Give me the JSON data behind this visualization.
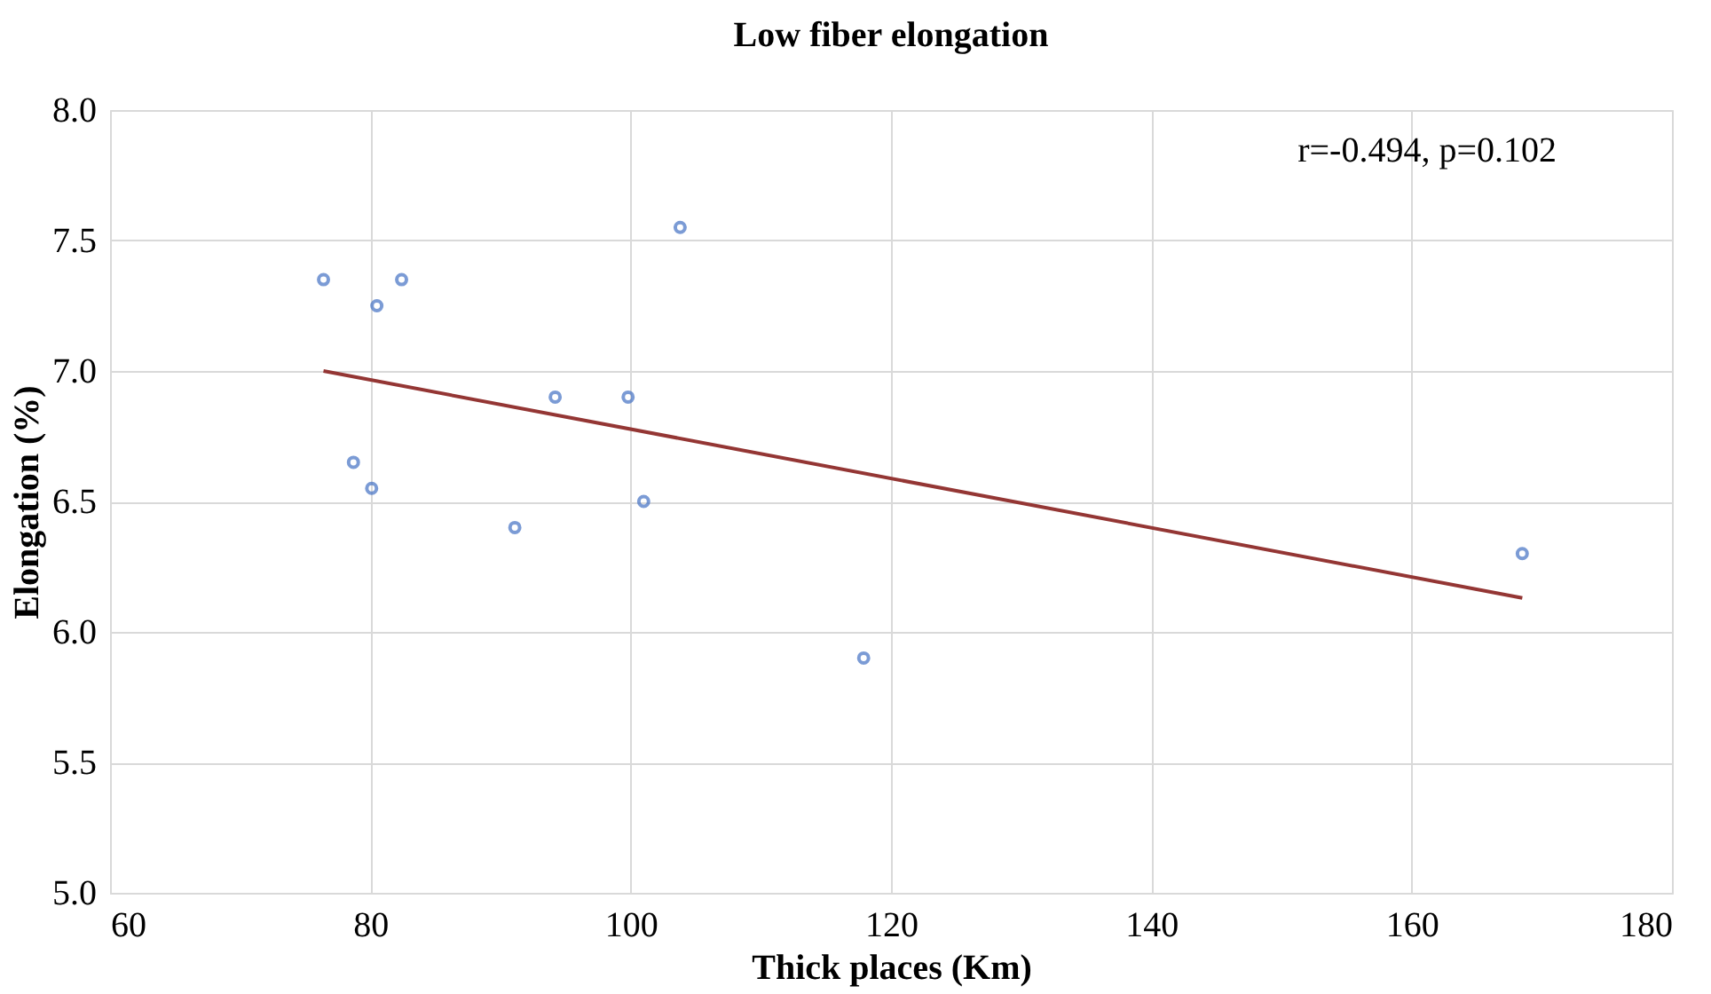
{
  "chart_data": {
    "type": "scatter",
    "title": "Low fiber elongation",
    "xlabel": "Thick places (Km)",
    "ylabel": "Elongation (%)",
    "xlim": [
      60,
      180
    ],
    "xticks": [
      60,
      80,
      100,
      120,
      140,
      160,
      180
    ],
    "ylim": [
      5.0,
      8.0
    ],
    "yticks": [
      {
        "value": 5,
        "label": "5.0"
      },
      {
        "value": 5.5,
        "label": "5.5"
      },
      {
        "value": 6,
        "label": "6.0"
      },
      {
        "value": 6.5,
        "label": "6.5"
      },
      {
        "value": 7,
        "label": "7.0"
      },
      {
        "value": 7.5,
        "label": "7.5"
      },
      {
        "value": 8,
        "label": "8.0"
      }
    ],
    "grid": true,
    "annotations": [
      "r=-0.494, p=0.102"
    ],
    "series": [
      {
        "type": "scatter",
        "marker": "circle",
        "color": "#4472c4",
        "x": [
          76.4,
          80.5,
          82.4,
          103.8,
          78.7,
          80.1,
          94.2,
          99.8,
          101.0,
          91.1,
          117.9,
          168.5
        ],
        "values": [
          7.35,
          7.25,
          7.35,
          7.55,
          6.65,
          6.55,
          6.9,
          6.9,
          6.5,
          6.4,
          5.9,
          6.3
        ]
      },
      {
        "type": "line",
        "color": "#943634",
        "x": [
          76.4,
          168.5
        ],
        "values": [
          7.0,
          6.13
        ]
      }
    ]
  }
}
